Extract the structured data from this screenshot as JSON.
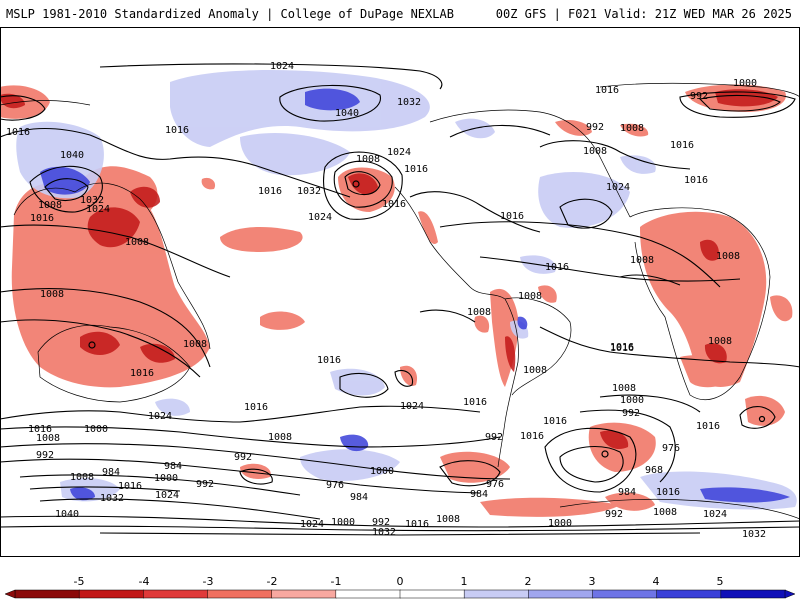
{
  "header": {
    "left_title": "MSLP 1981-2010 Standardized Anomaly | College of DuPage NEXLAB",
    "right_title": "00Z GFS | F021 Valid: 21Z WED MAR 26 2025"
  },
  "colorbar": {
    "ticks": [
      "-5",
      "-4",
      "-3",
      "-2",
      "-1",
      "0",
      "1",
      "2",
      "3",
      "4",
      "5"
    ],
    "colors": [
      "#8b0a0a",
      "#c21818",
      "#e03a3a",
      "#f07060",
      "#f8a8a0",
      "#ffffff",
      "#ffffff",
      "#c8ccf4",
      "#a0a6ee",
      "#6e74e6",
      "#3a40d8",
      "#1010b8"
    ]
  },
  "map": {
    "isobar_labels": [
      "1024",
      "1040",
      "1032",
      "1016",
      "1008",
      "1000",
      "992",
      "984",
      "976",
      "968",
      "1024",
      "1016",
      "1008",
      "1000",
      "992",
      "984",
      "976",
      "1024",
      "1040",
      "1032",
      "1016",
      "1008",
      "1024",
      "1016",
      "1008",
      "1016",
      "1024",
      "1000",
      "1008",
      "1016",
      "1000",
      "992",
      "976",
      "968",
      "984",
      "1016",
      "1024",
      "1032",
      "1032",
      "1016",
      "1008",
      "1000",
      "992",
      "984",
      "1024",
      "1040",
      "1008",
      "992",
      "1000",
      "1016",
      "1008",
      "1024",
      "1016",
      "1032"
    ],
    "colors": {
      "negative_anomaly": "#f07060",
      "strong_negative_anomaly": "#c21818",
      "positive_anomaly": "#c8ccf4",
      "strong_positive_anomaly": "#3a40d8",
      "isobar": "#000000",
      "coastline": "#000000"
    }
  }
}
